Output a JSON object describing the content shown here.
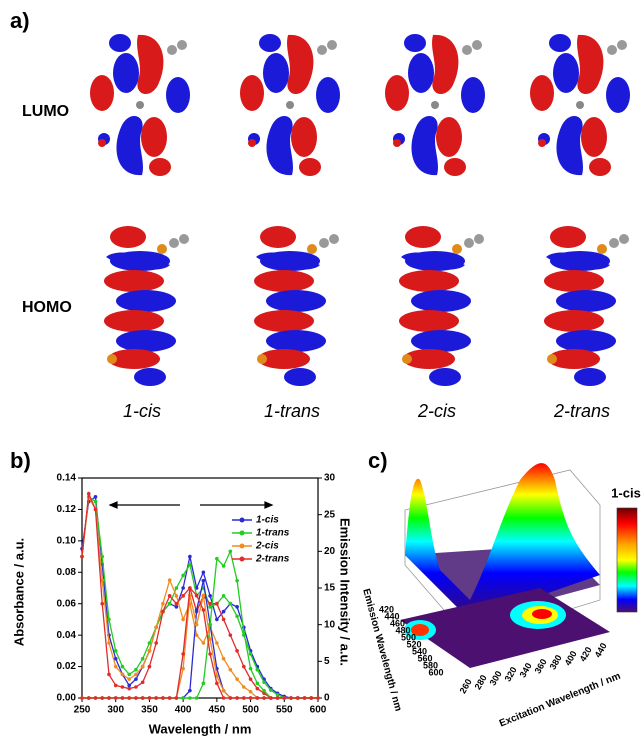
{
  "panel_a": {
    "label": "a)",
    "rows": [
      "LUMO",
      "HOMO"
    ],
    "compounds": [
      "1-cis",
      "1-trans",
      "2-cis",
      "2-trans"
    ]
  },
  "chart_data": {
    "type": "line",
    "label": "b)",
    "x_label": "Wavelength / nm",
    "y_label": "Absorbance / a.u.",
    "y2_label": "Emission Intensity / a.u.",
    "x": [
      250,
      260,
      270,
      280,
      290,
      300,
      310,
      320,
      330,
      340,
      350,
      360,
      370,
      380,
      390,
      400,
      410,
      420,
      430,
      440,
      450,
      460,
      470,
      480,
      490,
      500,
      510,
      520,
      530,
      540,
      550,
      560,
      570,
      580,
      590,
      600
    ],
    "xlim": [
      250,
      600
    ],
    "xticks": [
      250,
      300,
      350,
      400,
      450,
      500,
      550,
      600
    ],
    "ylim": [
      0,
      0.14
    ],
    "yticks": [
      {
        "value": 0,
        "label": "0.00"
      },
      {
        "value": 0.02,
        "label": "0.02"
      },
      {
        "value": 0.04,
        "label": "0.04"
      },
      {
        "value": 0.06,
        "label": "0.06"
      },
      {
        "value": 0.08,
        "label": "0.08"
      },
      {
        "value": 0.1,
        "label": "0.10"
      },
      {
        "value": 0.12,
        "label": "0.12"
      },
      {
        "value": 0.14,
        "label": "0.14"
      }
    ],
    "y2lim": [
      0,
      30
    ],
    "y2ticks": [
      0,
      5,
      10,
      15,
      20,
      25,
      30
    ],
    "legend": "upper right",
    "series": [
      {
        "name": "1-cis",
        "color": "#2b2bd6",
        "values": [
          0.095,
          0.125,
          0.128,
          0.085,
          0.04,
          0.025,
          0.015,
          0.008,
          0.012,
          0.02,
          0.03,
          0.045,
          0.055,
          0.06,
          0.058,
          0.07,
          0.09,
          0.07,
          0.08,
          0.065,
          0.05,
          0.055,
          0.06,
          0.058,
          0.045,
          0.03,
          0.02,
          0.012,
          0.006,
          0.003,
          0.001,
          0,
          0,
          0,
          0,
          0
        ]
      },
      {
        "name": "1-trans",
        "color": "#22cc22",
        "values": [
          0.09,
          0.128,
          0.125,
          0.09,
          0.05,
          0.03,
          0.02,
          0.015,
          0.018,
          0.025,
          0.035,
          0.045,
          0.055,
          0.06,
          0.07,
          0.078,
          0.085,
          0.065,
          0.07,
          0.058,
          0.06,
          0.065,
          0.06,
          0.052,
          0.04,
          0.028,
          0.018,
          0.01,
          0.005,
          0.002,
          0,
          0,
          0,
          0,
          0,
          0
        ]
      },
      {
        "name": "2-cis",
        "color": "#f08c1e",
        "values": [
          0.09,
          0.128,
          0.12,
          0.075,
          0.035,
          0.02,
          0.015,
          0.012,
          0.015,
          0.02,
          0.03,
          0.045,
          0.06,
          0.075,
          0.065,
          0.05,
          0.06,
          0.04,
          0.035,
          0.045,
          0.035,
          0.025,
          0.018,
          0.012,
          0.007,
          0.004,
          0,
          0,
          0,
          0,
          0,
          0,
          0,
          0,
          0,
          0
        ]
      },
      {
        "name": "2-trans",
        "color": "#e22b2b",
        "values": [
          0.09,
          0.13,
          0.12,
          0.06,
          0.015,
          0.008,
          0.007,
          0.006,
          0.007,
          0.01,
          0.02,
          0.035,
          0.055,
          0.065,
          0.06,
          0.065,
          0.07,
          0.055,
          0.065,
          0.06,
          0.06,
          0.05,
          0.04,
          0.03,
          0.02,
          0.012,
          0.006,
          0.003,
          0,
          0,
          0,
          0,
          0,
          0,
          0,
          0
        ]
      },
      {
        "color": "#2b2bd6",
        "axis": "y2",
        "values": [
          0,
          0,
          0,
          0,
          0,
          0,
          0,
          0,
          0,
          0,
          0,
          0,
          0,
          0,
          0,
          0,
          1,
          12,
          16,
          10,
          4,
          1,
          0,
          0,
          0,
          0,
          0,
          0,
          0,
          0,
          0,
          0,
          0,
          0,
          0,
          0
        ]
      },
      {
        "color": "#22cc22",
        "axis": "y2",
        "values": [
          0,
          0,
          0,
          0,
          0,
          0,
          0,
          0,
          0,
          0,
          0,
          0,
          0,
          0,
          0,
          0,
          0,
          0,
          2,
          10,
          19,
          18,
          20,
          16,
          9,
          4,
          2,
          1,
          0,
          0,
          0,
          0,
          0,
          0,
          0,
          0
        ]
      },
      {
        "color": "#f08c1e",
        "axis": "y2",
        "values": [
          0,
          0,
          0,
          0,
          0,
          0,
          0,
          0,
          0,
          0,
          0,
          0,
          0,
          0,
          0,
          4,
          14,
          10,
          14,
          8,
          3,
          1,
          0,
          0,
          0,
          0,
          0,
          0,
          0,
          0,
          0,
          0,
          0,
          0,
          0,
          0
        ]
      },
      {
        "color": "#e22b2b",
        "axis": "y2",
        "values": [
          0,
          0,
          0,
          0,
          0,
          0,
          0,
          0,
          0,
          0,
          0,
          0,
          0,
          0,
          0,
          6,
          15,
          14,
          12,
          6,
          2,
          0,
          0,
          0,
          0,
          0,
          0,
          0,
          0,
          0,
          0,
          0,
          0,
          0,
          0,
          0
        ]
      }
    ]
  },
  "panel_c": {
    "label": "c)",
    "title": "1-cis",
    "emission_axis": {
      "label": "Emission Wavelength / nm",
      "ticks": [
        "420",
        "440",
        "460",
        "480",
        "500",
        "520",
        "540",
        "560",
        "580",
        "600"
      ]
    },
    "excitation_axis": {
      "label": "Excitation Wavelength / nm",
      "ticks": [
        "260",
        "280",
        "300",
        "320",
        "340",
        "360",
        "380",
        "400",
        "420",
        "440"
      ]
    }
  }
}
